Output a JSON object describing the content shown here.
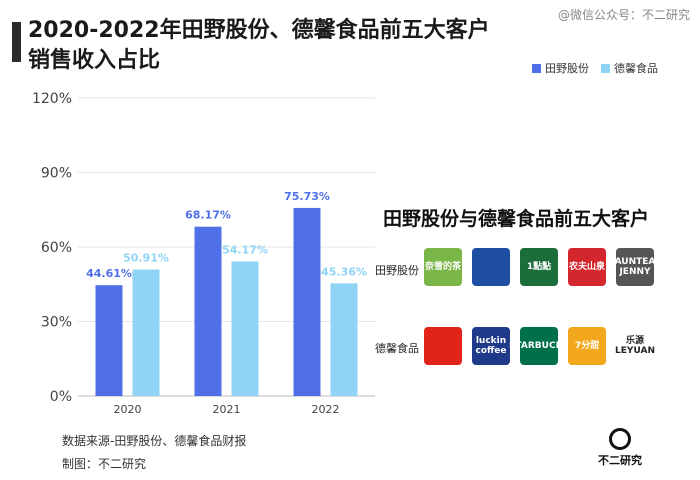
{
  "header": {
    "title_line1": "2020-2022年田野股份、德馨食品前五大客户",
    "title_line2": "销售收入占比",
    "watermark": "@微信公众号：不二研究"
  },
  "legend": {
    "items": [
      {
        "label": "田野股份",
        "color": "#4f6fe8"
      },
      {
        "label": "德馨食品",
        "color": "#8fd3f5"
      }
    ]
  },
  "panel": {
    "title": "田野股份与德馨食品前五大客户",
    "row1_label": "田野股份",
    "row2_label": "德馨食品",
    "row1_logos": [
      {
        "icon": "nayuki-logo",
        "text": "奈雪的茶",
        "color": "#7ab648"
      },
      {
        "icon": "panda-logo",
        "text": "",
        "color": "#1e4fa3"
      },
      {
        "icon": "yidiandian-logo",
        "text": "1點點",
        "color": "#1b6e3a"
      },
      {
        "icon": "nongfu-spring-logo",
        "text": "农夫山泉",
        "color": "#d4262d"
      },
      {
        "icon": "auntea-jenny-logo",
        "text": "AUNTEA JENNY",
        "color": "#555555"
      }
    ],
    "row2_logos": [
      {
        "icon": "mixue-logo",
        "text": "",
        "color": "#e2231a"
      },
      {
        "icon": "luckin-coffee-logo",
        "text": "luckin coffee",
        "color": "#1f3a8a"
      },
      {
        "icon": "starbucks-logo",
        "text": "STARBUCKS",
        "color": "#00704a"
      },
      {
        "icon": "7fentian-logo",
        "text": "7分甜",
        "color": "#f2a71c"
      },
      {
        "icon": "leyuan-logo",
        "text": "乐源 LEYUAN",
        "color": "#ffffff"
      }
    ]
  },
  "footer": {
    "source": "数据来源-田野股份、德馨食品财报",
    "credit": "制图：不二研究",
    "brand": "不二研究"
  },
  "chart_data": {
    "type": "bar",
    "categories": [
      "2020",
      "2021",
      "2022"
    ],
    "series": [
      {
        "name": "田野股份",
        "values": [
          44.61,
          68.17,
          75.73
        ],
        "labels": [
          "44.61%",
          "68.17%",
          "75.73%"
        ],
        "color": "#4f6fe8",
        "label_color": "#4f6fe8"
      },
      {
        "name": "德馨食品",
        "values": [
          50.91,
          54.17,
          45.36
        ],
        "labels": [
          "50.91%",
          "54.17%",
          "45.36%"
        ],
        "color": "#8fd3f5",
        "label_color": "#8fd3f5"
      }
    ],
    "ylim": [
      0,
      120
    ],
    "yticks": [
      0,
      30,
      60,
      90,
      120
    ],
    "ytick_labels": [
      "0%",
      "30%",
      "60%",
      "90%",
      "120%"
    ],
    "grid": true
  }
}
